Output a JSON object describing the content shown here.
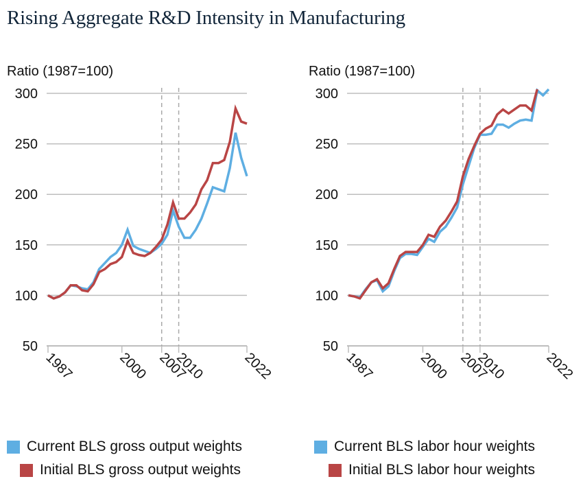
{
  "title": "Rising Aggregate R&D Intensity in Manufacturing",
  "colors": {
    "current": "#5eaee2",
    "initial": "#b94545",
    "grid": "#bdbdbd",
    "dashed": "#a8a8a8",
    "title": "#12263a"
  },
  "chart_data": [
    {
      "type": "line",
      "ylabel": "Ratio (1987=100)",
      "ylim": [
        50,
        300
      ],
      "yticks": [
        50,
        100,
        150,
        200,
        250,
        300
      ],
      "xlim": [
        1987,
        2022
      ],
      "xticks": [
        1987,
        2000,
        2007,
        2010,
        2022
      ],
      "vlines": [
        2007,
        2010
      ],
      "grid": true,
      "legend": "bottom-left",
      "series": [
        {
          "name": "Current BLS gross output weights",
          "color_key": "current",
          "x": [
            1987,
            1988,
            1989,
            1990,
            1991,
            1992,
            1993,
            1994,
            1995,
            1996,
            1997,
            1998,
            1999,
            2000,
            2001,
            2002,
            2003,
            2004,
            2005,
            2006,
            2007,
            2008,
            2009,
            2010,
            2011,
            2012,
            2013,
            2014,
            2015,
            2016,
            2017,
            2018,
            2019,
            2020,
            2021,
            2022
          ],
          "values": [
            100,
            97,
            99,
            103,
            110,
            109,
            107,
            106,
            113,
            126,
            132,
            138,
            142,
            150,
            165,
            149,
            146,
            144,
            142,
            146,
            151,
            160,
            184,
            168,
            157,
            157,
            165,
            176,
            191,
            207,
            205,
            203,
            226,
            261,
            236,
            218
          ]
        },
        {
          "name": "Initial BLS gross output weights",
          "color_key": "initial",
          "x": [
            1987,
            1988,
            1989,
            1990,
            1991,
            1992,
            1993,
            1994,
            1995,
            1996,
            1997,
            1998,
            1999,
            2000,
            2001,
            2002,
            2003,
            2004,
            2005,
            2006,
            2007,
            2008,
            2009,
            2010,
            2011,
            2012,
            2013,
            2014,
            2015,
            2016,
            2017,
            2018,
            2019,
            2020,
            2021,
            2022
          ],
          "values": [
            100,
            97,
            99,
            103,
            110,
            110,
            105,
            104,
            111,
            123,
            126,
            131,
            133,
            138,
            154,
            142,
            140,
            139,
            142,
            148,
            155,
            170,
            192,
            176,
            176,
            182,
            190,
            205,
            214,
            231,
            231,
            234,
            252,
            285,
            272,
            270
          ]
        }
      ]
    },
    {
      "type": "line",
      "ylabel": "Ratio (1987=100)",
      "ylim": [
        50,
        300
      ],
      "yticks": [
        50,
        100,
        150,
        200,
        250,
        300
      ],
      "xlim": [
        1987,
        2022
      ],
      "xticks": [
        1987,
        2000,
        2007,
        2010,
        2022
      ],
      "vlines": [
        2007,
        2010
      ],
      "grid": true,
      "legend": "bottom-right",
      "series": [
        {
          "name": "Current BLS labor hour weights",
          "color_key": "current",
          "x": [
            1987,
            1988,
            1989,
            1990,
            1991,
            1992,
            1993,
            1994,
            1995,
            1996,
            1997,
            1998,
            1999,
            2000,
            2001,
            2002,
            2003,
            2004,
            2005,
            2006,
            2007,
            2008,
            2009,
            2010,
            2011,
            2012,
            2013,
            2014,
            2015,
            2016,
            2017,
            2018,
            2019,
            2020,
            2021,
            2022
          ],
          "values": [
            100,
            99,
            98,
            106,
            113,
            115,
            104,
            109,
            124,
            137,
            141,
            141,
            140,
            148,
            156,
            153,
            163,
            168,
            177,
            187,
            210,
            228,
            246,
            259,
            259,
            260,
            269,
            269,
            266,
            270,
            273,
            274,
            273,
            303,
            298,
            304
          ]
        },
        {
          "name": "Initial BLS labor hour weights",
          "color_key": "initial",
          "x": [
            1987,
            1988,
            1989,
            1990,
            1991,
            1992,
            1993,
            1994,
            1995,
            1996,
            1997,
            1998,
            1999,
            2000,
            2001,
            2002,
            2003,
            2004,
            2005,
            2006,
            2007,
            2008,
            2009,
            2010,
            2011,
            2012,
            2013,
            2014,
            2015,
            2016,
            2017,
            2018,
            2019,
            2020
          ],
          "values": [
            100,
            99,
            97,
            105,
            113,
            116,
            107,
            112,
            126,
            139,
            143,
            143,
            143,
            150,
            160,
            158,
            168,
            174,
            183,
            193,
            218,
            235,
            248,
            260,
            265,
            268,
            279,
            284,
            280,
            284,
            288,
            288,
            283,
            304
          ]
        }
      ]
    }
  ]
}
